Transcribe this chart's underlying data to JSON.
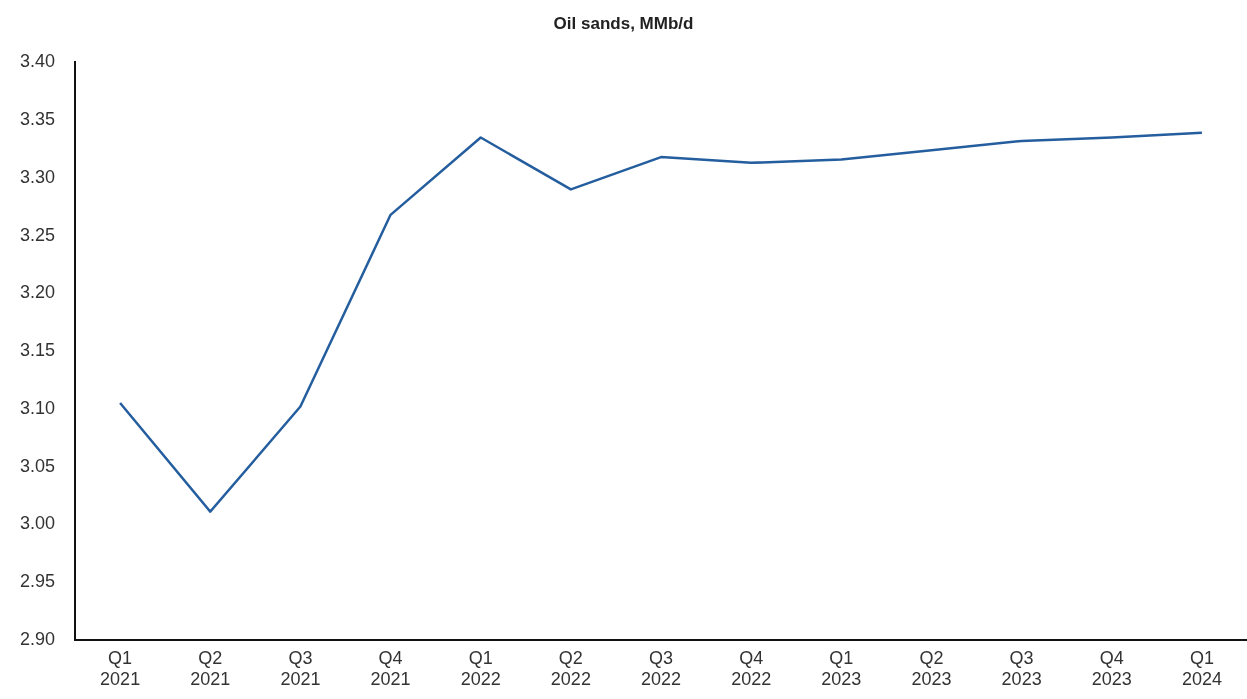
{
  "chart_data": {
    "type": "line",
    "title": "Oil sands, MMb/d",
    "categories": [
      "Q1 2021",
      "Q2 2021",
      "Q3 2021",
      "Q4 2021",
      "Q1 2022",
      "Q2 2022",
      "Q3 2022",
      "Q4 2022",
      "Q1 2023",
      "Q2 2023",
      "Q3 2023",
      "Q4 2023",
      "Q1 2024"
    ],
    "series": [
      {
        "color": "#255e9e",
        "values": [
          3.105,
          3.011,
          3.102,
          3.268,
          3.335,
          3.29,
          3.318,
          3.313,
          3.316,
          3.324,
          3.332,
          3.335,
          3.339
        ]
      }
    ],
    "ylim": [
      2.9,
      3.4
    ],
    "yticks": [
      {
        "value": 2.9,
        "label": "2.90"
      },
      {
        "value": 2.95,
        "label": "2.95"
      },
      {
        "value": 3.0,
        "label": "3.00"
      },
      {
        "value": 3.05,
        "label": "3.05"
      },
      {
        "value": 3.1,
        "label": "3.10"
      },
      {
        "value": 3.15,
        "label": "3.15"
      },
      {
        "value": 3.2,
        "label": "3.20"
      },
      {
        "value": 3.25,
        "label": "3.25"
      },
      {
        "value": 3.3,
        "label": "3.30"
      },
      {
        "value": 3.35,
        "label": "3.35"
      },
      {
        "value": 3.4,
        "label": "3.40"
      }
    ],
    "grid": false,
    "legend": false,
    "marker": "none",
    "line_style": "solid"
  }
}
